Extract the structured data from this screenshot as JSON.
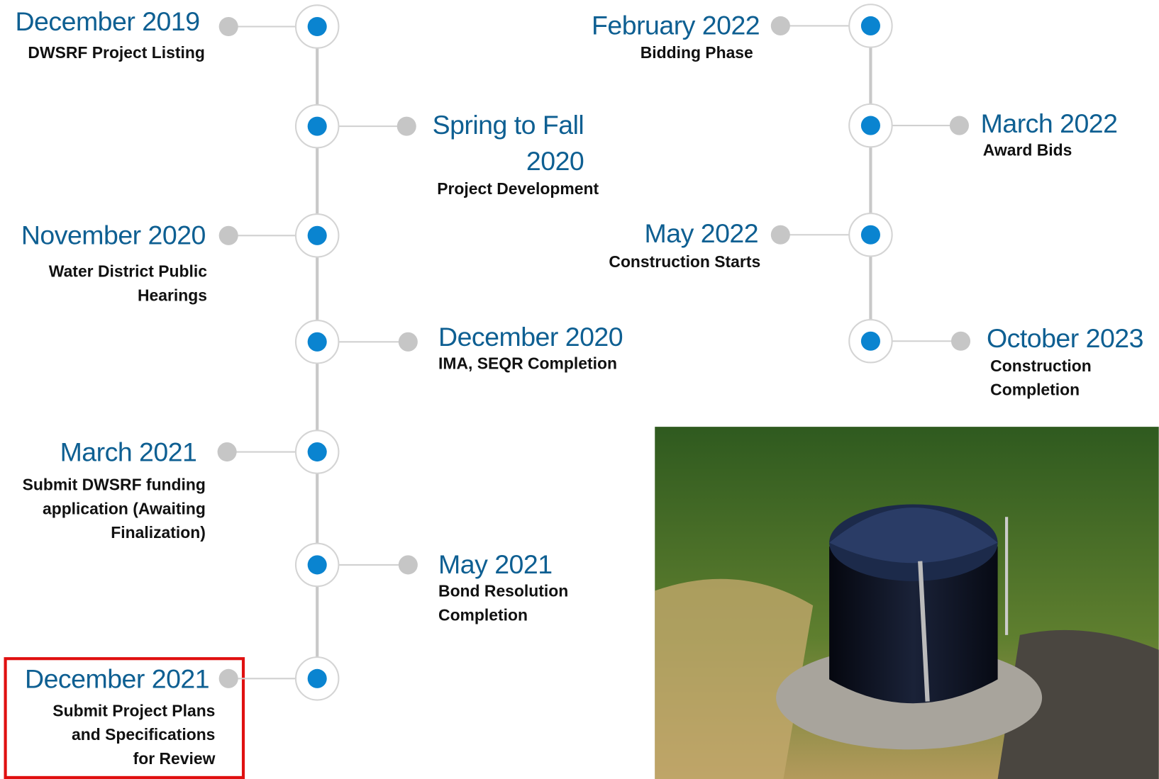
{
  "events": [
    {
      "date": [
        "December 2019"
      ],
      "description": [
        "DWSRF Project Listing"
      ]
    },
    {
      "date": [
        "Spring to Fall",
        "2020"
      ],
      "description": [
        "Project Development"
      ]
    },
    {
      "date": [
        "November 2020"
      ],
      "description": [
        "Water District Public",
        "Hearings"
      ]
    },
    {
      "date": [
        "December 2020"
      ],
      "description": [
        "IMA, SEQR Completion"
      ]
    },
    {
      "date": [
        "March 2021"
      ],
      "description": [
        "Submit DWSRF funding",
        "application (Awaiting",
        "Finalization)"
      ]
    },
    {
      "date": [
        "May 2021"
      ],
      "description": [
        "Bond Resolution",
        "Completion"
      ]
    },
    {
      "date": [
        "December 2021"
      ],
      "description": [
        "Submit Project Plans",
        "and Specifications",
        "for Review"
      ]
    },
    {
      "date": [
        "February 2022"
      ],
      "description": [
        "Bidding Phase"
      ]
    },
    {
      "date": [
        "March 2022"
      ],
      "description": [
        "Award Bids"
      ]
    },
    {
      "date": [
        "May 2022"
      ],
      "description": [
        "Construction Starts"
      ]
    },
    {
      "date": [
        "October 2023"
      ],
      "description": [
        "Construction",
        "Completion"
      ]
    }
  ]
}
